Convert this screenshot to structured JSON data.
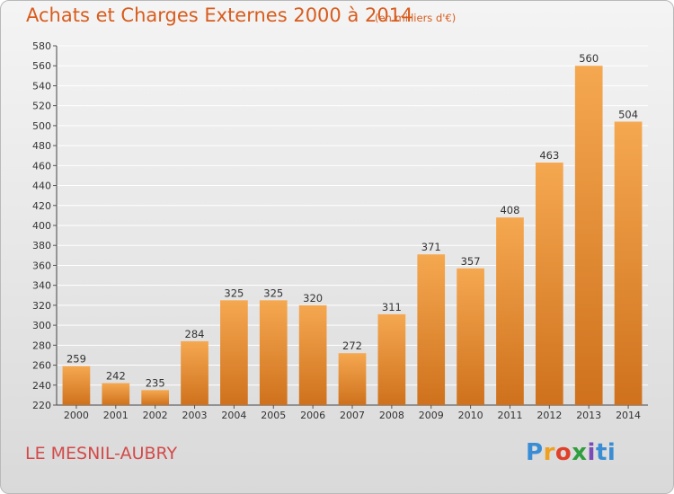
{
  "header": {
    "title": "Achats et Charges Externes 2000 à 2014",
    "subtitle": "(en milliers d'€)"
  },
  "footer": {
    "commune": "LE MESNIL-AUBRY",
    "brand": "Proxiti",
    "brand_letters": [
      "P",
      "r",
      "o",
      "x",
      "i",
      "ti"
    ]
  },
  "colors": {
    "bar_light": "#f5a850",
    "bar_dark": "#cf711d",
    "title": "#d85c1d",
    "commune": "#d34a4a",
    "grid": "#ffffff"
  },
  "chart_data": {
    "type": "bar",
    "title": "Achats et Charges Externes 2000 à 2014",
    "subtitle": "(en milliers d'€)",
    "xlabel": "",
    "ylabel": "",
    "categories": [
      "2000",
      "2001",
      "2002",
      "2003",
      "2004",
      "2005",
      "2006",
      "2007",
      "2008",
      "2009",
      "2010",
      "2011",
      "2012",
      "2013",
      "2014"
    ],
    "values": [
      259,
      242,
      235,
      284,
      325,
      325,
      320,
      272,
      311,
      371,
      357,
      408,
      463,
      560,
      504
    ],
    "ylim": [
      220,
      580
    ],
    "yticks": [
      220,
      240,
      260,
      280,
      300,
      320,
      340,
      360,
      380,
      400,
      420,
      440,
      460,
      480,
      500,
      520,
      540,
      560,
      580
    ],
    "grid": true,
    "legend": "none"
  }
}
